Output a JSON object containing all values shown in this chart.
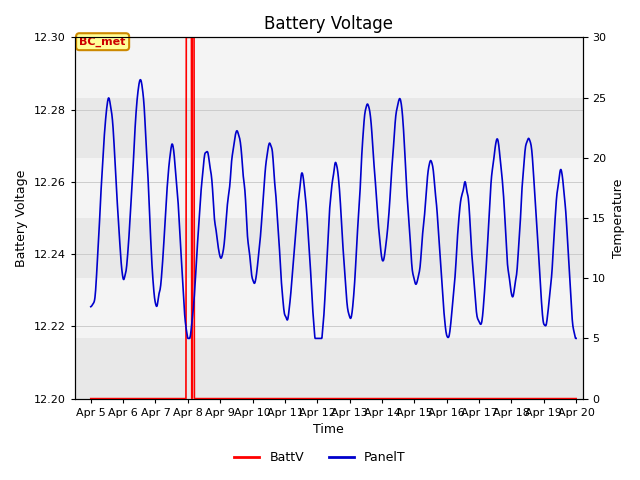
{
  "title": "Battery Voltage",
  "xlabel": "Time",
  "ylabel_left": "Battery Voltage",
  "ylabel_right": "Temperature",
  "annotation_text": "BC_met",
  "xlim_days": [
    4.5,
    20.2
  ],
  "ylim_left": [
    12.2,
    12.3
  ],
  "ylim_right": [
    0,
    30
  ],
  "yticks_left": [
    12.2,
    12.22,
    12.24,
    12.26,
    12.28,
    12.3
  ],
  "yticks_right": [
    0,
    5,
    10,
    15,
    20,
    25,
    30
  ],
  "xtick_labels": [
    "Apr 5",
    "Apr 6",
    "Apr 7",
    "Apr 8",
    "Apr 9",
    "Apr 10",
    "Apr 11",
    "Apr 12",
    "Apr 13",
    "Apr 14",
    "Apr 15",
    "Apr 16",
    "Apr 17",
    "Apr 18",
    "Apr 19",
    "Apr 20"
  ],
  "xtick_positions": [
    5,
    6,
    7,
    8,
    9,
    10,
    11,
    12,
    13,
    14,
    15,
    16,
    17,
    18,
    19,
    20
  ],
  "batt_color": "#ff0000",
  "panel_color": "#0000cc",
  "bg_band_dark": "#e8e8e8",
  "bg_band_light": "#f4f4f4",
  "grid_color": "#cccccc",
  "annotation_bg": "#ffff99",
  "annotation_border": "#cc8800",
  "annotation_text_color": "#cc0000",
  "legend_batt_label": "BattV",
  "legend_panel_label": "PanelT",
  "title_fontsize": 12,
  "axis_fontsize": 9,
  "tick_fontsize": 8,
  "fig_bg": "#ffffff",
  "plot_bg": "#ffffff"
}
